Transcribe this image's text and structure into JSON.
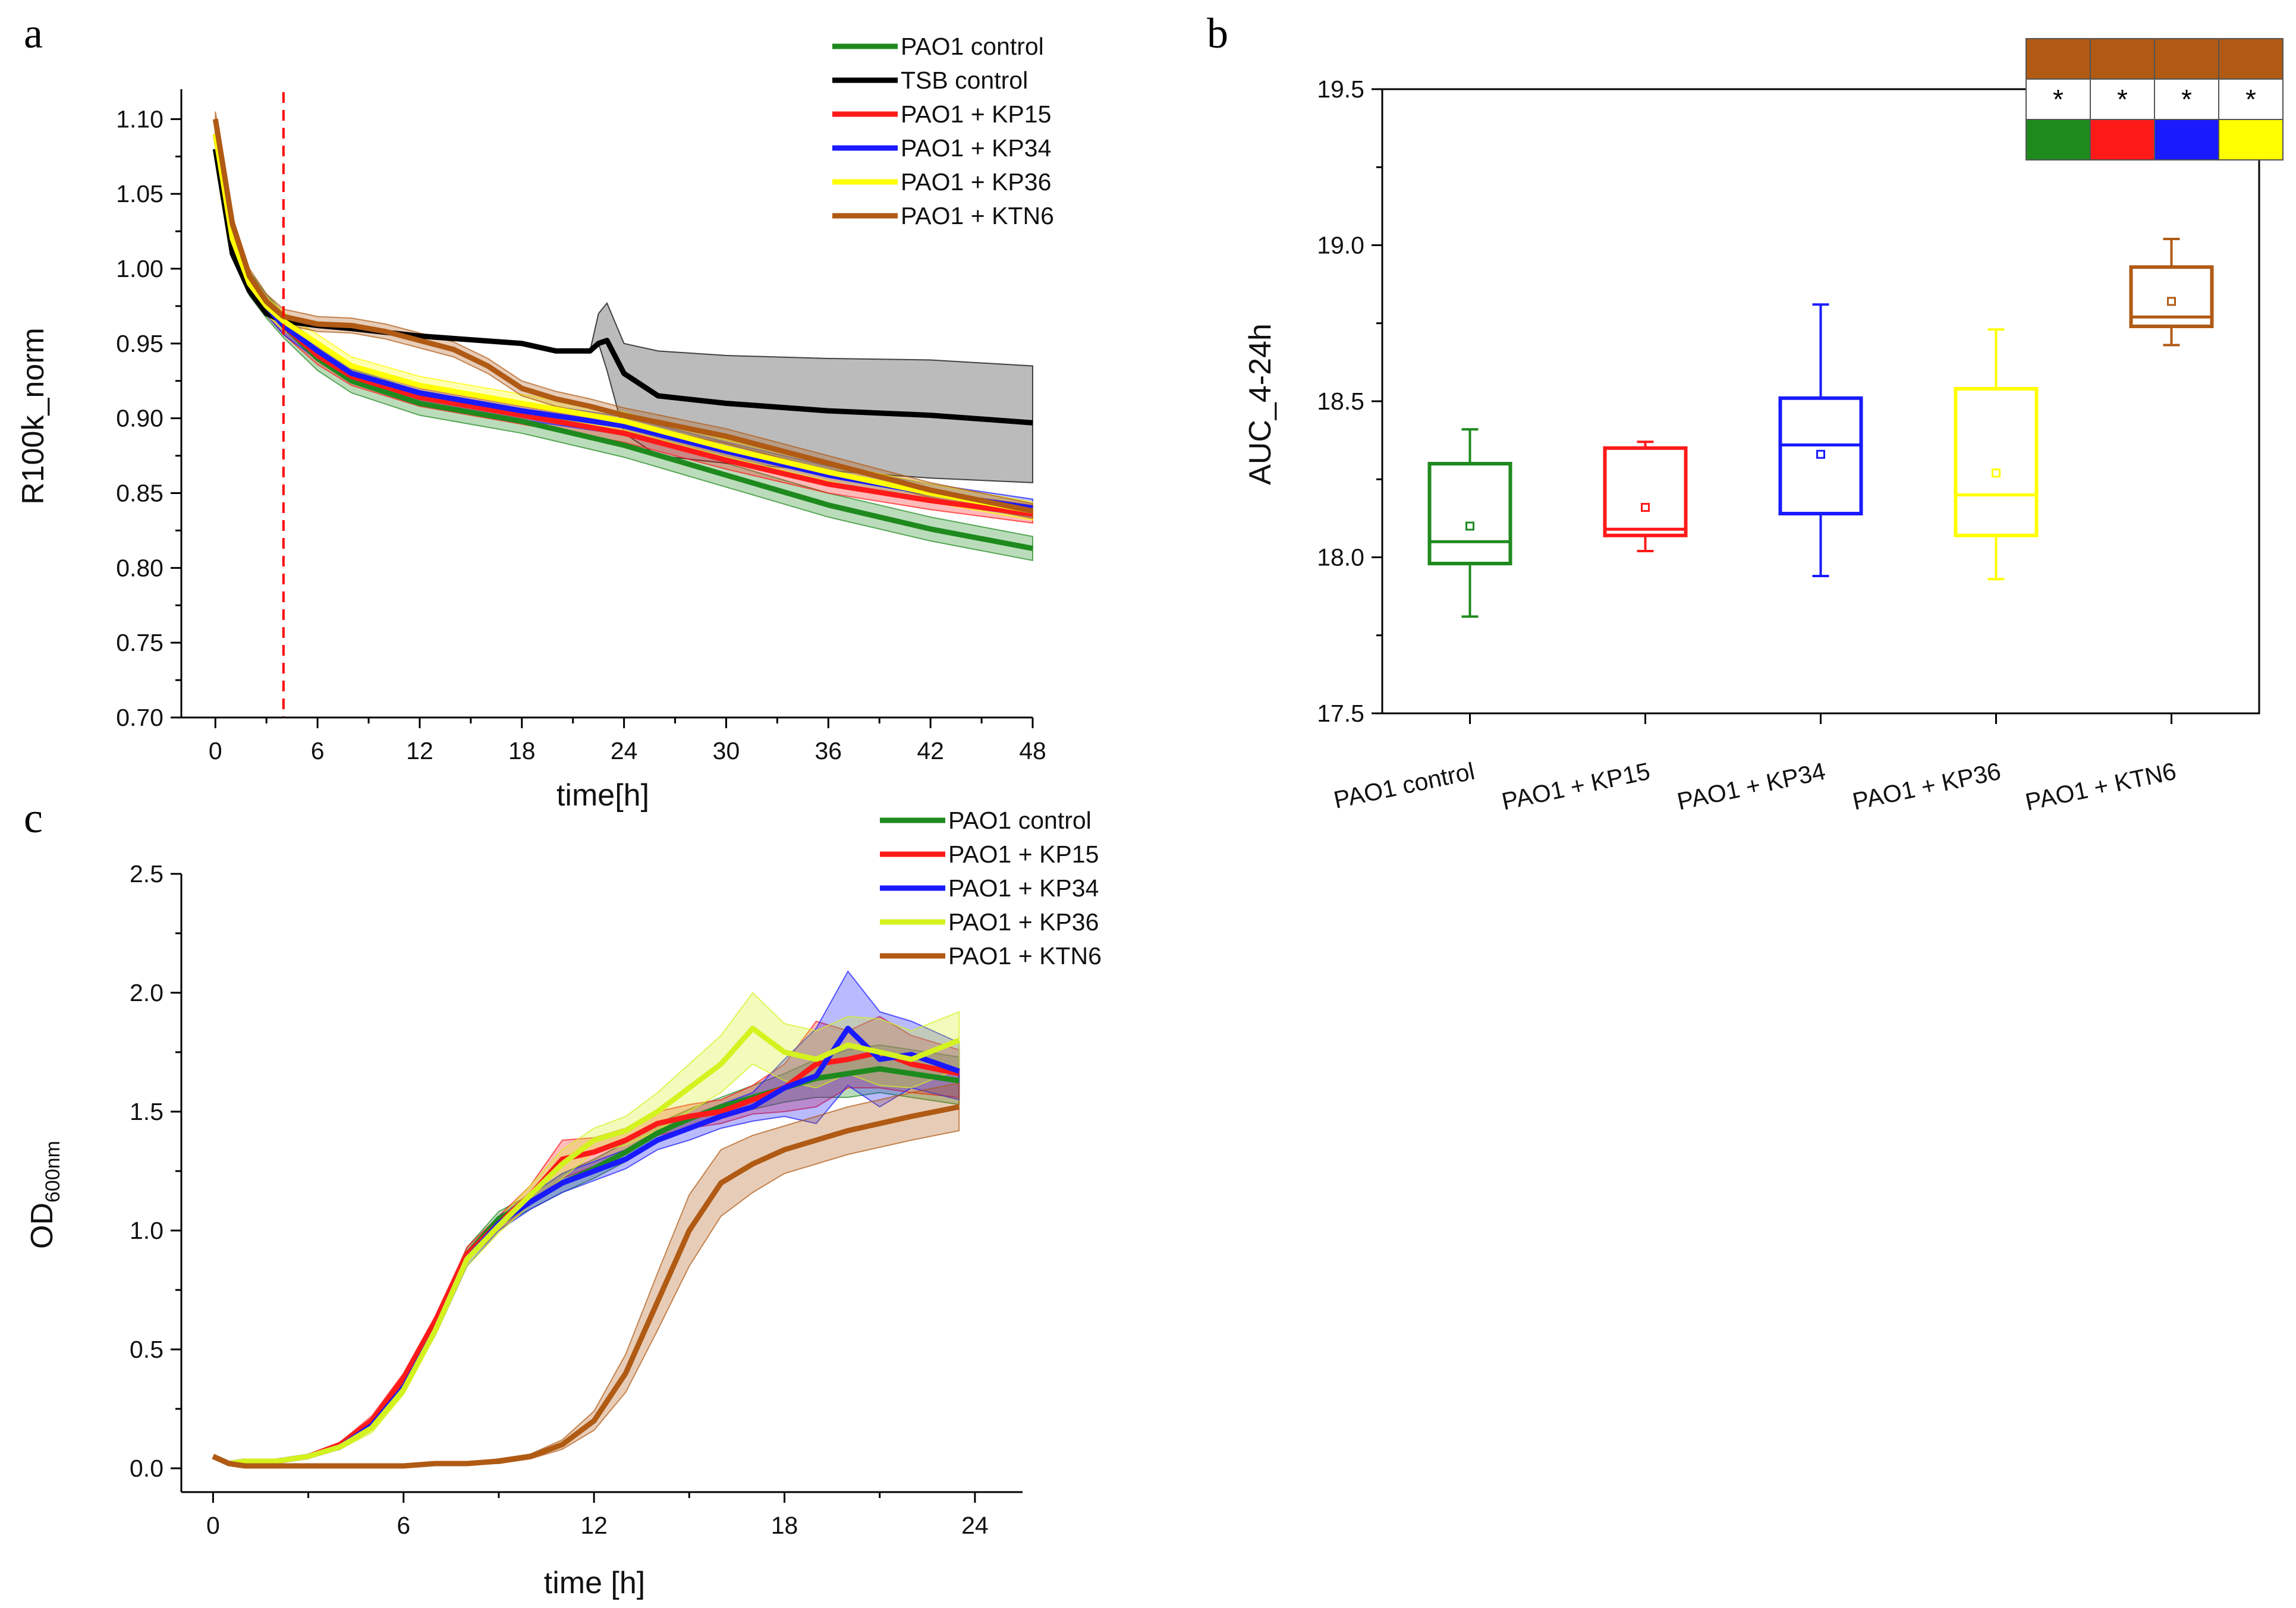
{
  "colors": {
    "green": "#1e8a1e",
    "black": "#000000",
    "red": "#ff1a1a",
    "blue": "#1a1aff",
    "yellow": "#ffff00",
    "yellow_green": "#d4f21e",
    "brown": "#b05a14",
    "gray_band": "#b4b4b4",
    "threshold": "#ff0000"
  },
  "chart_data": [
    {
      "panel": "a",
      "type": "line",
      "xlabel": "time[h]",
      "ylabel": "R100k_norm",
      "xlim": [
        -2,
        48
      ],
      "ylim": [
        0.7,
        1.12
      ],
      "xticks": [
        0,
        6,
        12,
        18,
        24,
        30,
        36,
        42,
        48
      ],
      "yticks": [
        0.7,
        0.75,
        0.8,
        0.85,
        0.9,
        0.95,
        1.0,
        1.05,
        1.1
      ],
      "xtick_labels": [
        "0",
        "6",
        "12",
        "18",
        "24",
        "30",
        "36",
        "42",
        "48"
      ],
      "ytick_labels": [
        "0.70",
        "0.75",
        "0.80",
        "0.85",
        "0.90",
        "0.95",
        "1.00",
        "1.05",
        "1.10"
      ],
      "vline_x": 4,
      "legend": [
        "PAO1 control",
        "TSB control",
        "PAO1 + KP15",
        "PAO1 + KP34",
        "PAO1 + KP36",
        "PAO1 + KTN6"
      ],
      "series": [
        {
          "name": "PAO1 control",
          "color": "green",
          "x": [
            0,
            1,
            2,
            3,
            4,
            6,
            8,
            12,
            18,
            24,
            30,
            36,
            42,
            48
          ],
          "y": [
            1.09,
            1.02,
            0.99,
            0.975,
            0.962,
            0.94,
            0.925,
            0.91,
            0.898,
            0.882,
            0.862,
            0.842,
            0.826,
            0.813
          ],
          "band": 0.008
        },
        {
          "name": "TSB control",
          "color": "black",
          "x": [
            0,
            1,
            2,
            3,
            4,
            6,
            8,
            12,
            18,
            20,
            22,
            22.5,
            23,
            24,
            26,
            30,
            36,
            42,
            48
          ],
          "y": [
            1.08,
            1.01,
            0.985,
            0.97,
            0.965,
            0.962,
            0.96,
            0.955,
            0.95,
            0.945,
            0.945,
            0.95,
            0.952,
            0.93,
            0.915,
            0.91,
            0.905,
            0.902,
            0.897
          ],
          "band_lo": [
            0,
            0,
            0,
            0,
            0,
            0,
            0,
            0,
            0,
            0,
            0,
            0,
            0.02,
            0.04,
            0.04,
            0.04,
            0.04,
            0.042,
            0.04
          ],
          "band_hi": [
            0,
            0,
            0,
            0,
            0,
            0,
            0,
            0,
            0,
            0,
            0,
            0.02,
            0.025,
            0.02,
            0.03,
            0.032,
            0.035,
            0.037,
            0.038
          ]
        },
        {
          "name": "PAO1 + KP15",
          "color": "red",
          "x": [
            0,
            1,
            2,
            3,
            4,
            6,
            8,
            12,
            18,
            24,
            30,
            36,
            42,
            48
          ],
          "y": [
            1.09,
            1.02,
            0.99,
            0.975,
            0.962,
            0.942,
            0.928,
            0.914,
            0.902,
            0.89,
            0.872,
            0.856,
            0.845,
            0.836
          ],
          "band": 0.006
        },
        {
          "name": "PAO1 + KP34",
          "color": "blue",
          "x": [
            0,
            1,
            2,
            3,
            4,
            6,
            8,
            12,
            18,
            24,
            30,
            36,
            42,
            48
          ],
          "y": [
            1.09,
            1.02,
            0.99,
            0.975,
            0.962,
            0.945,
            0.93,
            0.917,
            0.905,
            0.895,
            0.878,
            0.862,
            0.85,
            0.84
          ],
          "band": 0.006
        },
        {
          "name": "PAO1 + KP36",
          "color": "yellow",
          "x": [
            0,
            1,
            2,
            3,
            4,
            6,
            8,
            12,
            18,
            24,
            30,
            36,
            42,
            48
          ],
          "y": [
            1.09,
            1.02,
            0.99,
            0.975,
            0.965,
            0.95,
            0.935,
            0.922,
            0.91,
            0.898,
            0.88,
            0.864,
            0.85,
            0.838
          ],
          "band": 0.006
        },
        {
          "name": "PAO1 + KTN6",
          "color": "brown",
          "x": [
            0,
            1,
            2,
            3,
            4,
            6,
            8,
            10,
            12,
            14,
            16,
            18,
            20,
            22,
            24,
            30,
            36,
            42,
            48
          ],
          "y": [
            1.1,
            1.03,
            0.995,
            0.978,
            0.968,
            0.963,
            0.962,
            0.958,
            0.952,
            0.946,
            0.935,
            0.92,
            0.913,
            0.908,
            0.902,
            0.888,
            0.87,
            0.852,
            0.838
          ],
          "band": 0.005
        }
      ]
    },
    {
      "panel": "b",
      "type": "box",
      "ylabel": "AUC_4-24h",
      "ylim": [
        17.5,
        19.5
      ],
      "yticks": [
        17.5,
        18.0,
        18.5,
        19.0,
        19.5
      ],
      "ytick_labels": [
        "17.5",
        "18.0",
        "18.5",
        "19.0",
        "19.5"
      ],
      "categories": [
        "PAO1 control",
        "PAO1 + KP15",
        "PAO1 + KP34",
        "PAO1 + KP36",
        "PAO1 + KTN6"
      ],
      "boxes": [
        {
          "color": "green",
          "min": 17.81,
          "q1": 17.98,
          "median": 18.05,
          "q3": 18.3,
          "max": 18.41,
          "mean": 18.1
        },
        {
          "color": "red",
          "min": 18.02,
          "q1": 18.07,
          "median": 18.09,
          "q3": 18.35,
          "max": 18.37,
          "mean": 18.16
        },
        {
          "color": "blue",
          "min": 17.94,
          "q1": 18.14,
          "median": 18.36,
          "q3": 18.51,
          "max": 18.81,
          "mean": 18.33
        },
        {
          "color": "yellow",
          "min": 17.93,
          "q1": 18.07,
          "median": 18.2,
          "q3": 18.54,
          "max": 18.73,
          "mean": 18.27
        },
        {
          "color": "brown",
          "min": 18.68,
          "q1": 18.74,
          "median": 18.77,
          "q3": 18.93,
          "max": 19.02,
          "mean": 18.82
        }
      ],
      "significance_table": {
        "header_color": "brown",
        "marks": [
          "*",
          "*",
          "*",
          "*"
        ],
        "compare_colors": [
          "green",
          "red",
          "blue",
          "yellow"
        ]
      }
    },
    {
      "panel": "c",
      "type": "line",
      "xlabel": "time [h]",
      "ylabel": "OD",
      "ylabel_sub": "600nm",
      "xlim": [
        -1,
        25.5
      ],
      "ylim": [
        -0.1,
        2.5
      ],
      "xticks": [
        0,
        6,
        12,
        18,
        24
      ],
      "yticks": [
        0.0,
        0.5,
        1.0,
        1.5,
        2.0,
        2.5
      ],
      "xtick_labels": [
        "0",
        "6",
        "12",
        "18",
        "24"
      ],
      "ytick_labels": [
        "0.0",
        "0.5",
        "1.0",
        "1.5",
        "2.0",
        "2.5"
      ],
      "legend": [
        "PAO1 control",
        "PAO1 + KP15",
        "PAO1 + KP34",
        "PAO1 + KP36",
        "PAO1 + KTN6"
      ],
      "series": [
        {
          "name": "PAO1 control",
          "color": "green",
          "x": [
            0,
            0.5,
            1,
            2,
            3,
            4,
            5,
            6,
            7,
            8,
            9,
            10,
            11,
            12,
            13,
            14,
            15,
            16,
            17,
            18,
            19,
            20,
            21,
            22,
            23.5
          ],
          "y": [
            0.05,
            0.02,
            0.03,
            0.03,
            0.05,
            0.09,
            0.18,
            0.35,
            0.6,
            0.9,
            1.05,
            1.12,
            1.2,
            1.26,
            1.33,
            1.41,
            1.47,
            1.52,
            1.56,
            1.6,
            1.64,
            1.66,
            1.68,
            1.66,
            1.63
          ],
          "band": [
            0,
            0,
            0,
            0,
            0,
            0.01,
            0.02,
            0.02,
            0.02,
            0.03,
            0.03,
            0.03,
            0.04,
            0.04,
            0.04,
            0.04,
            0.04,
            0.04,
            0.05,
            0.06,
            0.08,
            0.1,
            0.1,
            0.1,
            0.1
          ]
        },
        {
          "name": "PAO1 + KP15",
          "color": "red",
          "x": [
            0,
            0.5,
            1,
            2,
            3,
            4,
            5,
            6,
            7,
            8,
            9,
            10,
            11,
            12,
            13,
            14,
            15,
            16,
            17,
            18,
            19,
            20,
            21,
            22,
            23.5
          ],
          "y": [
            0.05,
            0.02,
            0.03,
            0.03,
            0.05,
            0.1,
            0.2,
            0.38,
            0.62,
            0.9,
            1.03,
            1.15,
            1.3,
            1.33,
            1.38,
            1.45,
            1.48,
            1.5,
            1.55,
            1.6,
            1.7,
            1.72,
            1.75,
            1.7,
            1.66
          ],
          "band": [
            0,
            0,
            0,
            0,
            0,
            0.01,
            0.02,
            0.02,
            0.02,
            0.03,
            0.03,
            0.04,
            0.08,
            0.06,
            0.05,
            0.05,
            0.05,
            0.05,
            0.06,
            0.1,
            0.18,
            0.12,
            0.15,
            0.12,
            0.1
          ]
        },
        {
          "name": "PAO1 + KP34",
          "color": "blue",
          "x": [
            0,
            0.5,
            1,
            2,
            3,
            4,
            5,
            6,
            7,
            8,
            9,
            10,
            11,
            12,
            13,
            14,
            15,
            16,
            17,
            18,
            19,
            20,
            21,
            22,
            23.5
          ],
          "y": [
            0.05,
            0.02,
            0.03,
            0.03,
            0.05,
            0.09,
            0.18,
            0.34,
            0.58,
            0.88,
            1.03,
            1.12,
            1.2,
            1.25,
            1.3,
            1.38,
            1.43,
            1.48,
            1.52,
            1.6,
            1.65,
            1.85,
            1.72,
            1.74,
            1.67
          ],
          "band": [
            0,
            0,
            0,
            0,
            0,
            0.01,
            0.02,
            0.02,
            0.02,
            0.03,
            0.03,
            0.03,
            0.04,
            0.04,
            0.04,
            0.04,
            0.05,
            0.05,
            0.06,
            0.12,
            0.2,
            0.24,
            0.2,
            0.14,
            0.12
          ]
        },
        {
          "name": "PAO1 + KP36",
          "color": "yellow_green",
          "x": [
            0,
            0.5,
            1,
            2,
            3,
            4,
            5,
            6,
            7,
            8,
            9,
            10,
            11,
            12,
            13,
            14,
            15,
            16,
            17,
            18,
            19,
            20,
            21,
            22,
            23.5
          ],
          "y": [
            0.05,
            0.02,
            0.03,
            0.03,
            0.05,
            0.09,
            0.17,
            0.33,
            0.58,
            0.88,
            1.02,
            1.15,
            1.28,
            1.38,
            1.42,
            1.5,
            1.6,
            1.7,
            1.85,
            1.75,
            1.72,
            1.78,
            1.75,
            1.72,
            1.8
          ],
          "band": [
            0,
            0,
            0,
            0,
            0,
            0.01,
            0.02,
            0.02,
            0.02,
            0.03,
            0.03,
            0.04,
            0.06,
            0.05,
            0.06,
            0.08,
            0.1,
            0.12,
            0.15,
            0.12,
            0.12,
            0.12,
            0.14,
            0.12,
            0.12
          ]
        },
        {
          "name": "PAO1 + KTN6",
          "color": "brown",
          "x": [
            0,
            0.5,
            1,
            2,
            3,
            4,
            5,
            6,
            7,
            8,
            9,
            10,
            11,
            12,
            13,
            14,
            15,
            16,
            17,
            18,
            19,
            20,
            21,
            22,
            23.5
          ],
          "y": [
            0.05,
            0.02,
            0.01,
            0.01,
            0.01,
            0.01,
            0.01,
            0.01,
            0.02,
            0.02,
            0.03,
            0.05,
            0.1,
            0.2,
            0.4,
            0.7,
            1.0,
            1.2,
            1.28,
            1.34,
            1.38,
            1.42,
            1.45,
            1.48,
            1.52
          ],
          "band": [
            0,
            0,
            0,
            0,
            0,
            0,
            0,
            0,
            0,
            0,
            0.01,
            0.01,
            0.02,
            0.04,
            0.08,
            0.12,
            0.15,
            0.14,
            0.12,
            0.1,
            0.1,
            0.1,
            0.1,
            0.1,
            0.1
          ]
        }
      ]
    }
  ]
}
